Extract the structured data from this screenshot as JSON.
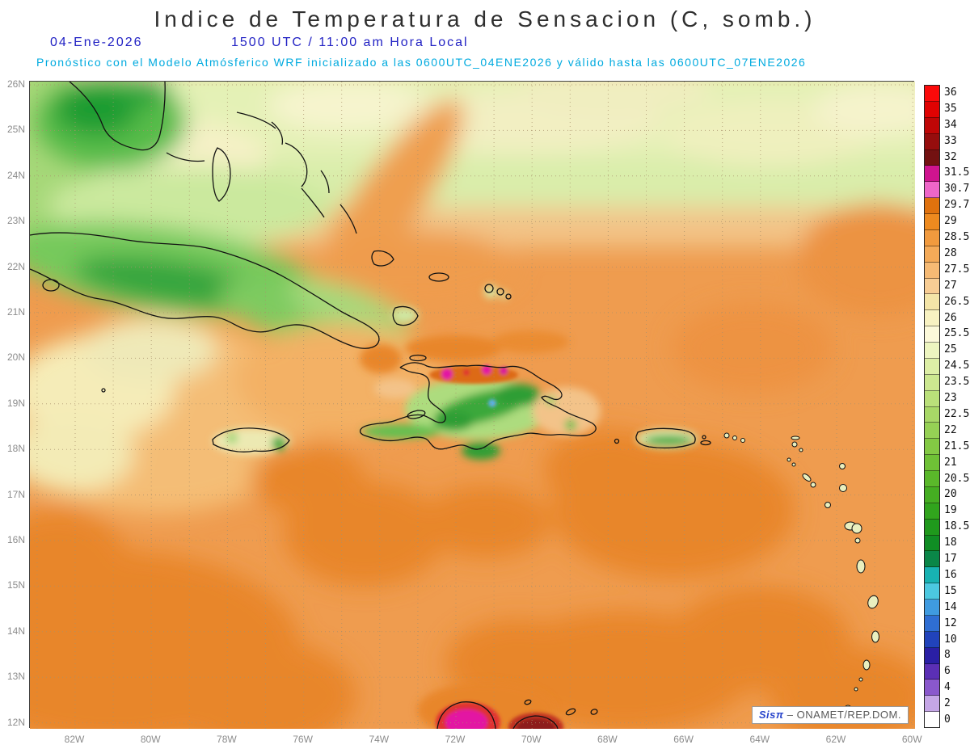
{
  "colors": {
    "title": "#2e2e2e",
    "datetime": "#2222c4",
    "note": "#00aadf",
    "axis": "#8c8c8c",
    "credit_logo": "#2a46cc",
    "credit_org": "#5a5a5a",
    "sea_base": "#ef9c4f"
  },
  "header": {
    "title": "Indice de Temperatura de Sensacion (C, somb.)",
    "date": "04-Ene-2026",
    "time": "1500 UTC / 11:00 am Hora Local",
    "note": "Pronóstico con el Modelo Atmósferico WRF inicializado a las 0600UTC_04ENE2026 y válido hasta las  0600UTC_07ENE2026"
  },
  "axes": {
    "lat_labels": [
      "26N",
      "25N",
      "24N",
      "23N",
      "22N",
      "21N",
      "20N",
      "19N",
      "18N",
      "17N",
      "16N",
      "15N",
      "14N",
      "13N",
      "12N"
    ],
    "lon_labels": [
      "82W",
      "80W",
      "78W",
      "76W",
      "74W",
      "72W",
      "70W",
      "68W",
      "66W",
      "64W",
      "62W",
      "60W"
    ]
  },
  "colorbar": {
    "entries": [
      {
        "label": "36",
        "color": "#fb0a0a"
      },
      {
        "label": "35",
        "color": "#e00202"
      },
      {
        "label": "34",
        "color": "#bf0606"
      },
      {
        "label": "33",
        "color": "#960d0d"
      },
      {
        "label": "32",
        "color": "#731111"
      },
      {
        "label": "31.5",
        "color": "#cf148f"
      },
      {
        "label": "30.7",
        "color": "#ee66c8"
      },
      {
        "label": "29.7",
        "color": "#e0720e"
      },
      {
        "label": "29",
        "color": "#ee8a1f"
      },
      {
        "label": "28.5",
        "color": "#f19a3e"
      },
      {
        "label": "28",
        "color": "#f4aa58"
      },
      {
        "label": "27.5",
        "color": "#f6ba74"
      },
      {
        "label": "27",
        "color": "#f8cd94"
      },
      {
        "label": "26.5",
        "color": "#f4e5a8"
      },
      {
        "label": "26",
        "color": "#f8f2c2"
      },
      {
        "label": "25.5",
        "color": "#fcf9da"
      },
      {
        "label": "25",
        "color": "#edf5c0"
      },
      {
        "label": "24.5",
        "color": "#ddefa6"
      },
      {
        "label": "23.5",
        "color": "#cce890"
      },
      {
        "label": "23",
        "color": "#bae07a"
      },
      {
        "label": "22.5",
        "color": "#a8d867"
      },
      {
        "label": "22",
        "color": "#96d155"
      },
      {
        "label": "21.5",
        "color": "#83c944"
      },
      {
        "label": "21",
        "color": "#6fc136"
      },
      {
        "label": "20.5",
        "color": "#5ab82a"
      },
      {
        "label": "20",
        "color": "#45ae22"
      },
      {
        "label": "19",
        "color": "#31a41d"
      },
      {
        "label": "18.5",
        "color": "#1f991c"
      },
      {
        "label": "18",
        "color": "#108d24"
      },
      {
        "label": "17",
        "color": "#0a8648"
      },
      {
        "label": "16",
        "color": "#18b2b2"
      },
      {
        "label": "15",
        "color": "#4cc8e0"
      },
      {
        "label": "14",
        "color": "#3f9be0"
      },
      {
        "label": "12",
        "color": "#2f6ed3"
      },
      {
        "label": "10",
        "color": "#2143bb"
      },
      {
        "label": "8",
        "color": "#2a1fa5"
      },
      {
        "label": "6",
        "color": "#5b2fb5"
      },
      {
        "label": "4",
        "color": "#8a58cc"
      },
      {
        "label": "2",
        "color": "#c5a6e6"
      },
      {
        "label": "0",
        "color": "#ffffff"
      }
    ]
  },
  "credit": {
    "logo": "Sisπ",
    "separator": "–",
    "org": "ONAMET/REP.DOM."
  }
}
